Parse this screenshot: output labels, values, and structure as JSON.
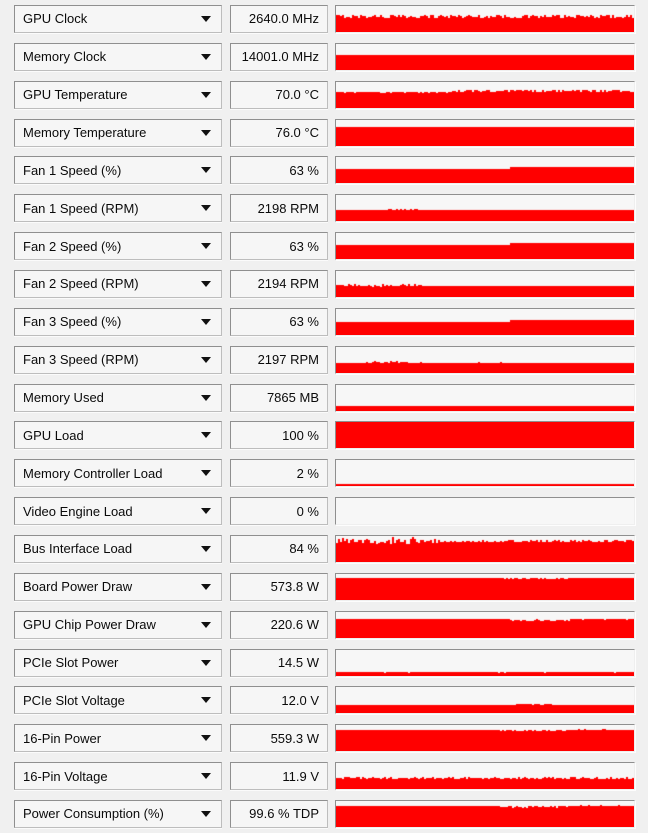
{
  "colors": {
    "graph_red": "#ff0000",
    "panel_bg": "#f0f0f0",
    "box_bg": "#f6f6f6",
    "graph_bg": "#f7f7f7",
    "border": "#8f8f8f"
  },
  "icons": {
    "dropdown": "chevron-down-triangle"
  },
  "sensors": [
    {
      "label": "GPU Clock",
      "value": "2640.0 MHz",
      "graph": {
        "segments": [
          {
            "from": 0,
            "to": 1,
            "fill": 0.6,
            "noise": 0.07
          }
        ]
      }
    },
    {
      "label": "Memory Clock",
      "value": "14001.0 MHz",
      "graph": {
        "segments": [
          {
            "from": 0,
            "to": 1,
            "fill": 0.58,
            "noise": 0.004
          }
        ]
      }
    },
    {
      "label": "GPU Temperature",
      "value": "70.0 °C",
      "graph": {
        "segments": [
          {
            "from": 0,
            "to": 0.38,
            "fill": 0.6,
            "noise": 0.01
          },
          {
            "from": 0.38,
            "to": 1,
            "fill": 0.66,
            "noise": 0.05
          }
        ]
      }
    },
    {
      "label": "Memory Temperature",
      "value": "76.0 °C",
      "graph": {
        "segments": [
          {
            "from": 0,
            "to": 1,
            "fill": 0.72,
            "noise": 0.008
          }
        ]
      }
    },
    {
      "label": "Fan 1 Speed (%)",
      "value": "63 %",
      "graph": {
        "segments": [
          {
            "from": 0,
            "to": 0.58,
            "fill": 0.55,
            "noise": 0.004
          },
          {
            "from": 0.58,
            "to": 1,
            "fill": 0.62,
            "noise": 0.004
          }
        ]
      }
    },
    {
      "label": "Fan 1 Speed (RPM)",
      "value": "2198 RPM",
      "graph": {
        "segments": [
          {
            "from": 0,
            "to": 0.13,
            "fill": 0.42,
            "noise": 0.01
          },
          {
            "from": 0.13,
            "to": 0.27,
            "fill": 0.44,
            "noise": 0.035
          },
          {
            "from": 0.27,
            "to": 1,
            "fill": 0.42,
            "noise": 0.004
          }
        ]
      }
    },
    {
      "label": "Fan 2 Speed (%)",
      "value": "63 %",
      "graph": {
        "segments": [
          {
            "from": 0,
            "to": 0.58,
            "fill": 0.55,
            "noise": 0.004
          },
          {
            "from": 0.58,
            "to": 1,
            "fill": 0.62,
            "noise": 0.004
          }
        ]
      }
    },
    {
      "label": "Fan 2 Speed (RPM)",
      "value": "2194 RPM",
      "graph": {
        "segments": [
          {
            "from": 0,
            "to": 0.3,
            "fill": 0.45,
            "noise": 0.05
          },
          {
            "from": 0.3,
            "to": 1,
            "fill": 0.43,
            "noise": 0.006
          }
        ]
      }
    },
    {
      "label": "Fan 3 Speed (%)",
      "value": "63 %",
      "graph": {
        "segments": [
          {
            "from": 0,
            "to": 0.58,
            "fill": 0.5,
            "noise": 0.004
          },
          {
            "from": 0.58,
            "to": 1,
            "fill": 0.57,
            "noise": 0.004
          }
        ]
      }
    },
    {
      "label": "Fan 3 Speed (RPM)",
      "value": "2197 RPM",
      "graph": {
        "segments": [
          {
            "from": 0,
            "to": 0.12,
            "fill": 0.4,
            "noise": 0.008
          },
          {
            "from": 0.12,
            "to": 0.24,
            "fill": 0.42,
            "noise": 0.03
          },
          {
            "from": 0.24,
            "to": 1,
            "fill": 0.4,
            "noise": 0.004
          }
        ]
      }
    },
    {
      "label": "Memory Used",
      "value": "7865 MB",
      "graph": {
        "segments": [
          {
            "from": 0,
            "to": 1,
            "fill": 0.18,
            "noise": 0.004
          }
        ]
      }
    },
    {
      "label": "GPU Load",
      "value": "100 %",
      "graph": {
        "segments": [
          {
            "from": 0,
            "to": 1,
            "fill": 1,
            "noise": 0
          }
        ]
      }
    },
    {
      "label": "Memory Controller Load",
      "value": "2 %",
      "graph": {
        "segments": [
          {
            "from": 0,
            "to": 1,
            "fill": 0.07,
            "noise": 0.012
          }
        ]
      }
    },
    {
      "label": "Video Engine Load",
      "value": "0 %",
      "graph": {
        "segments": [
          {
            "from": 0,
            "to": 1,
            "fill": 0,
            "noise": 0
          }
        ]
      }
    },
    {
      "label": "Bus Interface Load",
      "value": "84 %",
      "graph": {
        "segments": [
          {
            "from": 0,
            "to": 0.35,
            "fill": 0.8,
            "noise": 0.1,
            "spikes": true
          },
          {
            "from": 0.35,
            "to": 1,
            "fill": 0.8,
            "noise": 0.05
          }
        ]
      }
    },
    {
      "label": "Board Power Draw",
      "value": "573.8 W",
      "graph": {
        "segments": [
          {
            "from": 0,
            "to": 0.55,
            "fill": 0.84,
            "noise": 0.005
          },
          {
            "from": 0.55,
            "to": 0.78,
            "fill": 0.82,
            "noise": 0.025
          },
          {
            "from": 0.78,
            "to": 1,
            "fill": 0.84,
            "noise": 0.01
          }
        ]
      }
    },
    {
      "label": "GPU Chip Power Draw",
      "value": "220.6 W",
      "graph": {
        "segments": [
          {
            "from": 0,
            "to": 0.58,
            "fill": 0.72,
            "noise": 0.005
          },
          {
            "from": 0.58,
            "to": 0.78,
            "fill": 0.68,
            "noise": 0.035
          },
          {
            "from": 0.78,
            "to": 1,
            "fill": 0.72,
            "noise": 0.012
          }
        ]
      }
    },
    {
      "label": "PCIe Slot Power",
      "value": "14.5 W",
      "graph": {
        "segments": [
          {
            "from": 0,
            "to": 1,
            "fill": 0.14,
            "noise": 0.006
          }
        ]
      }
    },
    {
      "label": "PCIe Slot Voltage",
      "value": "12.0 V",
      "graph": {
        "segments": [
          {
            "from": 0,
            "to": 0.6,
            "fill": 0.3,
            "noise": 0.005
          },
          {
            "from": 0.6,
            "to": 0.72,
            "fill": 0.34,
            "noise": 0.02
          },
          {
            "from": 0.72,
            "to": 1,
            "fill": 0.3,
            "noise": 0.005
          }
        ]
      }
    },
    {
      "label": "16-Pin Power",
      "value": "559.3 W",
      "graph": {
        "segments": [
          {
            "from": 0,
            "to": 0.55,
            "fill": 0.82,
            "noise": 0.005
          },
          {
            "from": 0.55,
            "to": 0.78,
            "fill": 0.79,
            "noise": 0.03
          },
          {
            "from": 0.78,
            "to": 1,
            "fill": 0.82,
            "noise": 0.012
          }
        ]
      }
    },
    {
      "label": "16-Pin Voltage",
      "value": "11.9 V",
      "graph": {
        "segments": [
          {
            "from": 0,
            "to": 1,
            "fill": 0.42,
            "noise": 0.035
          }
        ]
      }
    },
    {
      "label": "Power Consumption (%)",
      "value": "99.6 % TDP",
      "graph": {
        "segments": [
          {
            "from": 0,
            "to": 0.55,
            "fill": 0.82,
            "noise": 0.005
          },
          {
            "from": 0.55,
            "to": 0.8,
            "fill": 0.78,
            "noise": 0.04
          },
          {
            "from": 0.8,
            "to": 1,
            "fill": 0.82,
            "noise": 0.012
          }
        ]
      }
    }
  ]
}
